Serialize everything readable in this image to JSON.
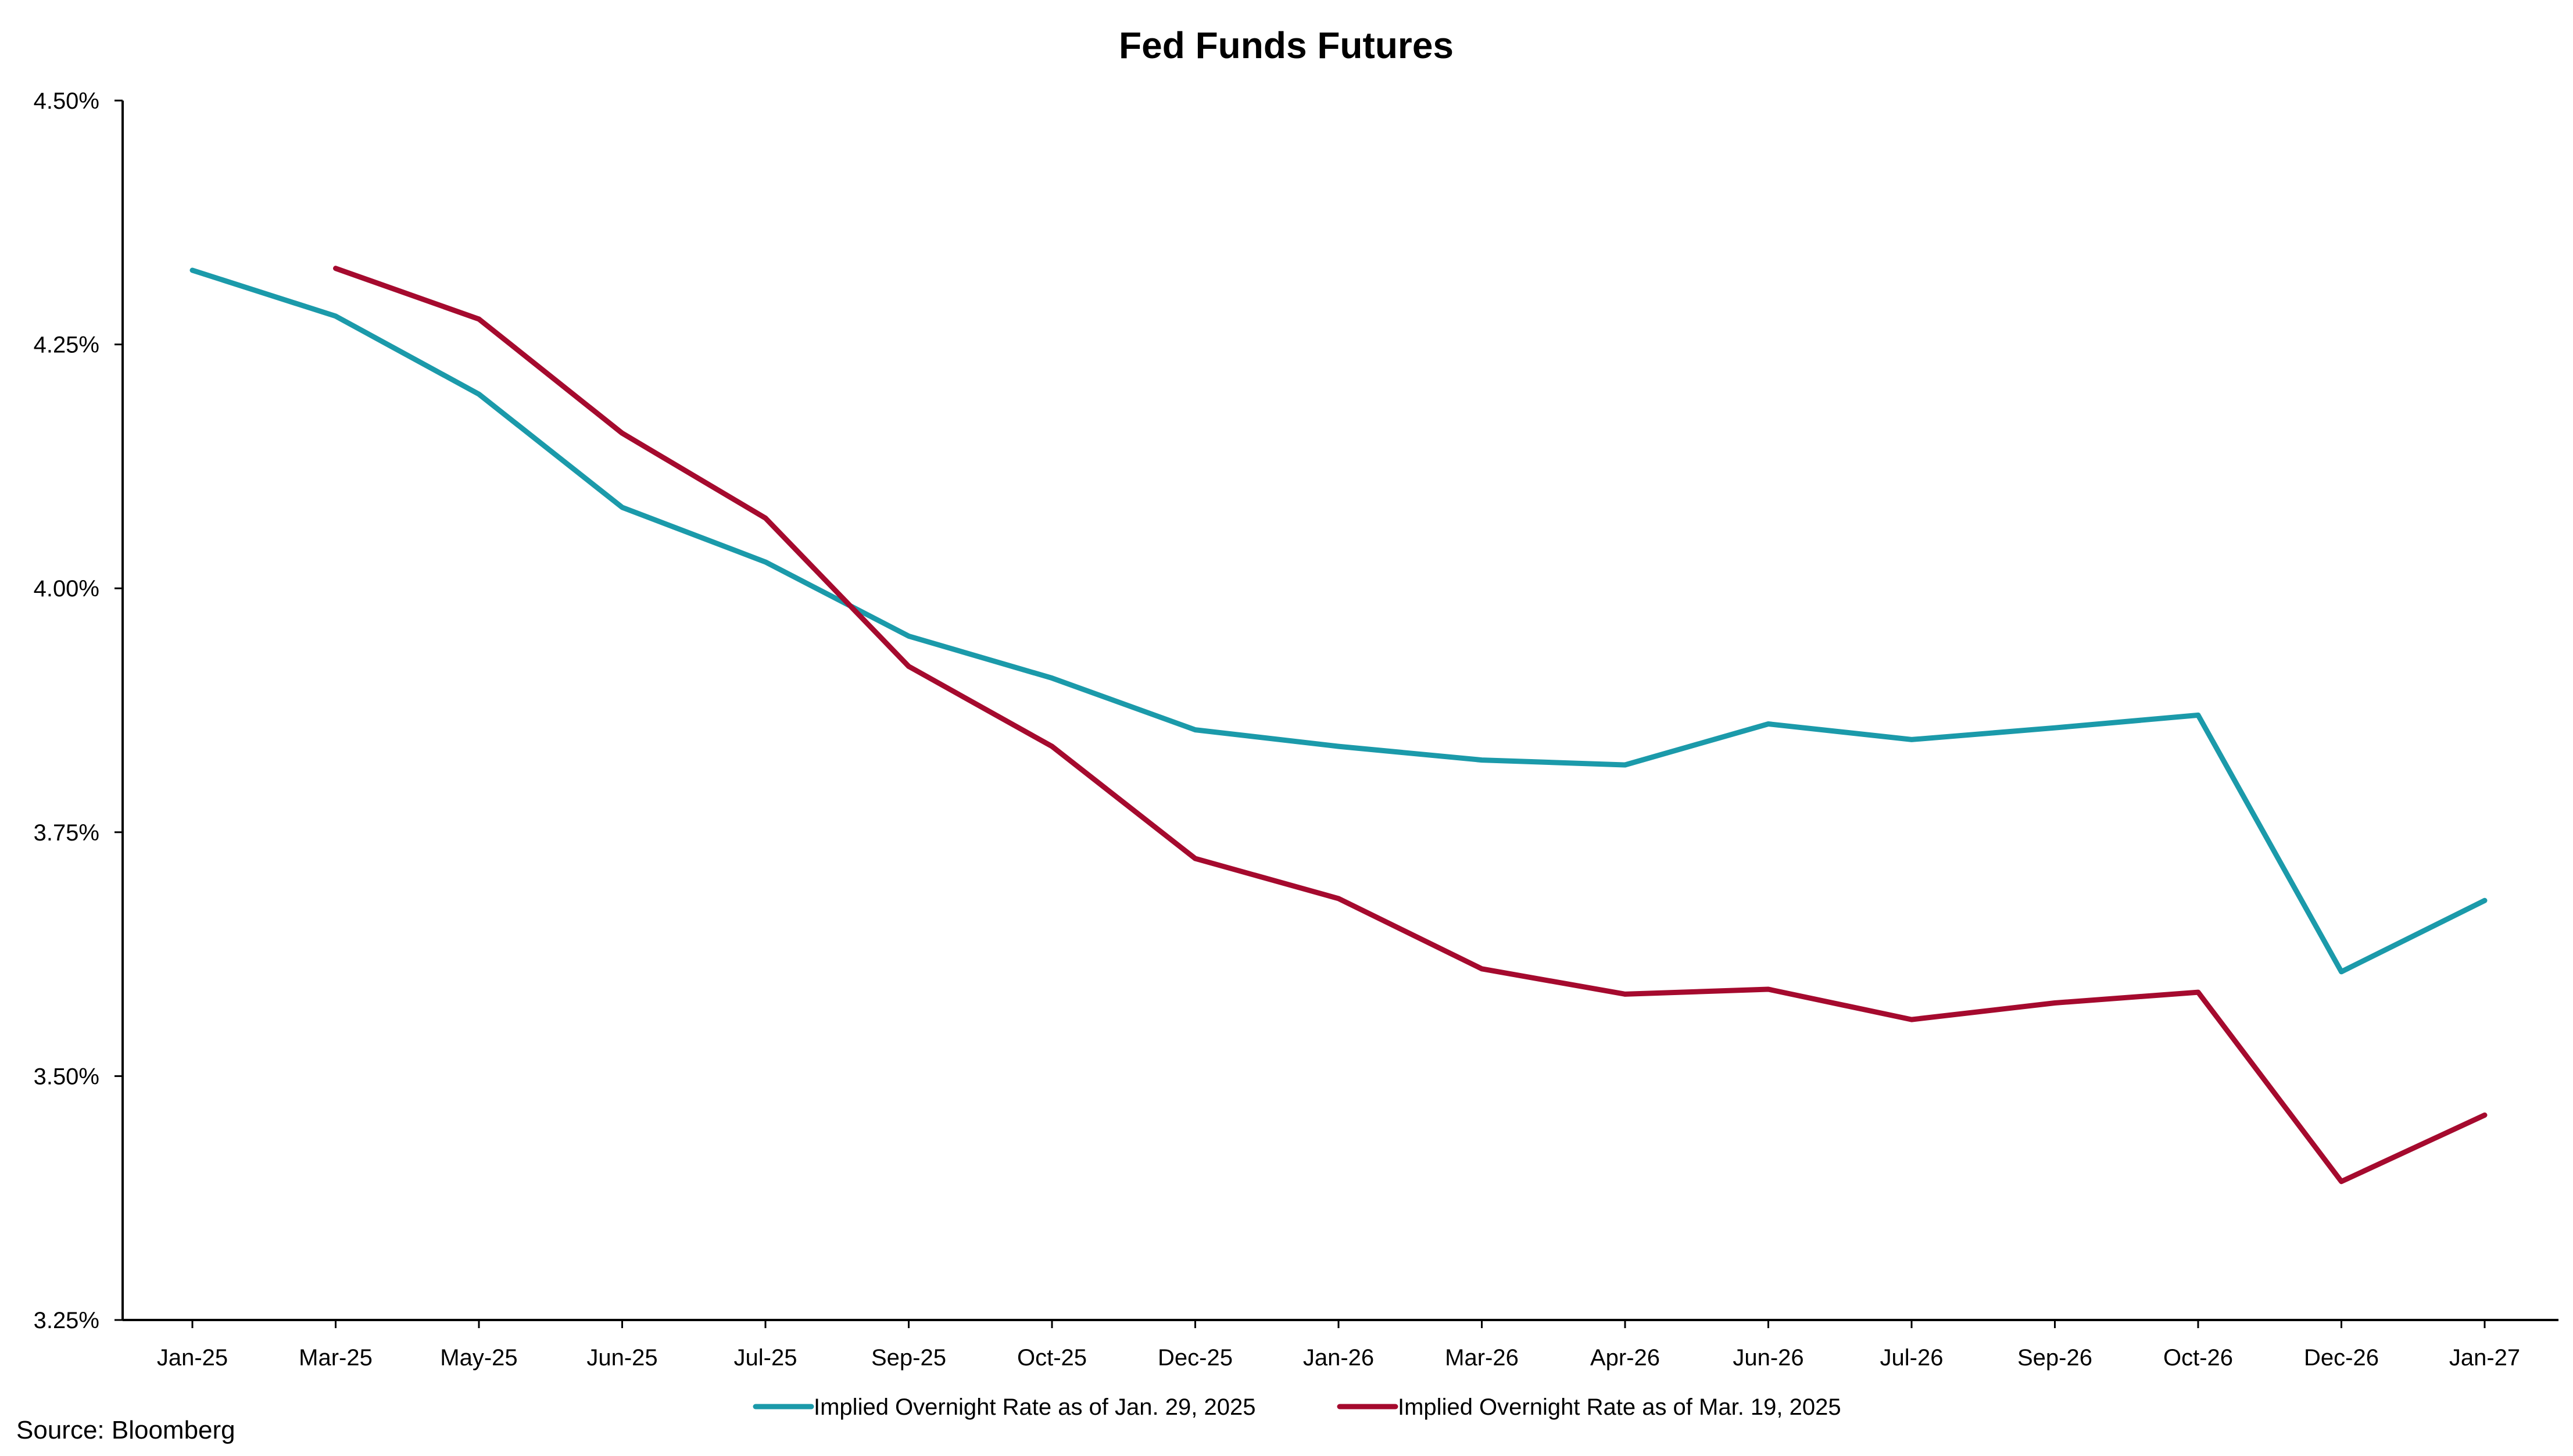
{
  "chart_data": {
    "type": "line",
    "title": "Fed Funds Futures",
    "xlabel": "",
    "ylabel": "",
    "categories": [
      "Jan-25",
      "Mar-25",
      "May-25",
      "Jun-25",
      "Jul-25",
      "Sep-25",
      "Oct-25",
      "Dec-25",
      "Jan-26",
      "Mar-26",
      "Apr-26",
      "Jun-26",
      "Jul-26",
      "Sep-26",
      "Oct-26",
      "Dec-26",
      "Jan-27"
    ],
    "ylim": [
      3.25,
      4.5
    ],
    "yticks": [
      3.25,
      3.5,
      3.75,
      4.0,
      4.25,
      4.5
    ],
    "ytick_labels": [
      "3.25%",
      "3.50%",
      "3.75%",
      "4.00%",
      "4.25%",
      "4.50%"
    ],
    "grid": false,
    "legend_position": "bottom",
    "series": [
      {
        "name": "Implied Overnight Rate as of Jan. 29, 2025",
        "color": "#1b9aaa",
        "values": [
          4.326,
          4.279,
          4.199,
          4.083,
          4.027,
          3.951,
          3.908,
          3.855,
          3.838,
          3.824,
          3.819,
          3.861,
          3.845,
          3.857,
          3.87,
          3.607,
          3.68
        ]
      },
      {
        "name": "Implied Overnight Rate as of Mar. 19, 2025",
        "color": "#a50a2e",
        "values": [
          null,
          4.328,
          4.276,
          4.159,
          4.072,
          3.92,
          3.838,
          3.723,
          3.682,
          3.61,
          3.584,
          3.589,
          3.558,
          3.575,
          3.586,
          3.392,
          3.46
        ]
      }
    ]
  },
  "source": "Source: Bloomberg"
}
